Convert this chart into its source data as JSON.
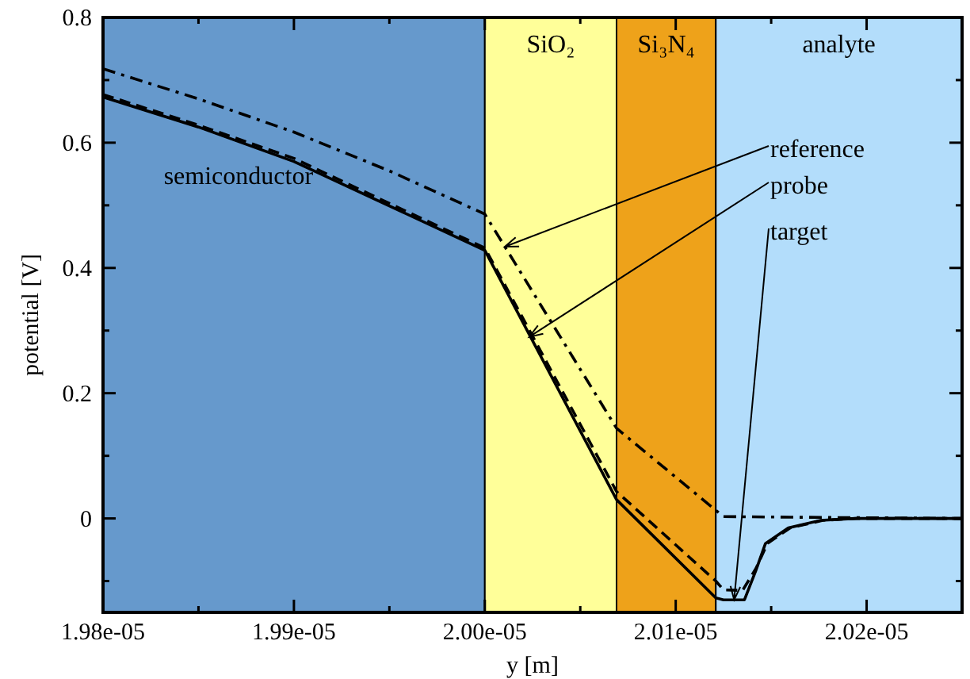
{
  "chart_data": {
    "type": "line",
    "xlabel": "y [m]",
    "ylabel": "potential [V]",
    "xlim": [
      1.98e-05,
      2.025e-05
    ],
    "ylim": [
      -0.15,
      0.8
    ],
    "xticks": [
      {
        "value": 1.98e-05,
        "label": "1.98e-05"
      },
      {
        "value": 1.985e-05,
        "label": null
      },
      {
        "value": 1.99e-05,
        "label": "1.99e-05"
      },
      {
        "value": 1.995e-05,
        "label": null
      },
      {
        "value": 2e-05,
        "label": "2.00e-05"
      },
      {
        "value": 2.005e-05,
        "label": null
      },
      {
        "value": 2.01e-05,
        "label": "2.01e-05"
      },
      {
        "value": 2.015e-05,
        "label": null
      },
      {
        "value": 2.02e-05,
        "label": "2.02e-05"
      }
    ],
    "yticks": [
      {
        "value": -0.1,
        "label": null
      },
      0,
      {
        "value": 0.1,
        "label": null
      },
      0.2,
      {
        "value": 0.3,
        "label": null
      },
      0.4,
      {
        "value": 0.5,
        "label": null
      },
      0.6,
      {
        "value": 0.7,
        "label": null
      },
      0.8
    ],
    "grid": false,
    "marker": "none",
    "series": [
      {
        "color": "#000000",
        "line_style": "dashdot",
        "x": [
          1.98e-05,
          1.985e-05,
          1.99e-05,
          1.995e-05,
          2e-05,
          2.0069e-05,
          2.0121e-05,
          2.0125e-05,
          2.016e-05,
          2.025e-05
        ],
        "values": [
          0.718,
          0.67,
          0.617,
          0.555,
          0.486,
          0.144,
          0.013,
          0.003,
          0.002,
          0.0
        ]
      },
      {
        "color": "#000000",
        "line_style": "dashed",
        "x": [
          1.98e-05,
          1.985e-05,
          1.99e-05,
          1.995e-05,
          2e-05,
          2.0069e-05,
          2.0121e-05,
          2.0125e-05,
          2.0135e-05,
          2.0142e-05,
          2.0148e-05,
          2.016e-05,
          2.0177e-05,
          2.0195e-05,
          2.025e-05
        ],
        "values": [
          0.677,
          0.628,
          0.575,
          0.503,
          0.432,
          0.043,
          -0.1,
          -0.114,
          -0.115,
          -0.08,
          -0.04,
          -0.015,
          -0.003,
          0.0,
          0.0
        ]
      },
      {
        "color": "#000000",
        "line_style": "solid",
        "x": [
          1.98e-05,
          1.985e-05,
          1.99e-05,
          1.995e-05,
          2e-05,
          2.0069e-05,
          2.0121e-05,
          2.0125e-05,
          2.0136e-05,
          2.0142e-05,
          2.0147e-05,
          2.0159e-05,
          2.0176e-05,
          2.0194e-05,
          2.025e-05
        ],
        "values": [
          0.673,
          0.625,
          0.57,
          0.499,
          0.428,
          0.03,
          -0.127,
          -0.13,
          -0.13,
          -0.083,
          -0.04,
          -0.015,
          -0.003,
          0.0,
          0.0
        ]
      }
    ],
    "bands": [
      {
        "axis": "x",
        "from": 1.98e-05,
        "to": 2e-05,
        "label": "semiconductor",
        "color": "#6699cc"
      },
      {
        "axis": "x",
        "from": 2e-05,
        "to": 2.0069e-05,
        "label": "SiO₂",
        "color": "#ffff99"
      },
      {
        "axis": "x",
        "from": 2.0069e-05,
        "to": 2.0121e-05,
        "label": "Si₃N₄",
        "color": "#eea21a"
      },
      {
        "axis": "x",
        "from": 2.0121e-05,
        "to": 2.025e-05,
        "label": "analyte",
        "color": "#b3ddfb"
      }
    ],
    "annotations": [
      {
        "text": "reference",
        "x": 2.00105e-05,
        "y": 0.434
      },
      {
        "text": "probe",
        "x": 2.00233e-05,
        "y": 0.29
      },
      {
        "text": "target",
        "x": 2.01306e-05,
        "y": -0.13
      }
    ]
  }
}
